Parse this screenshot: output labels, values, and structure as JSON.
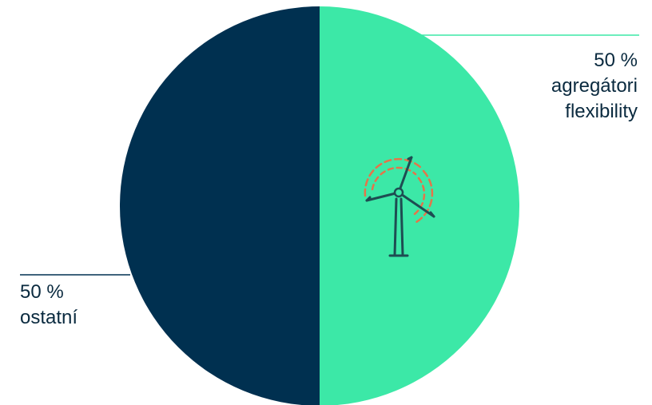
{
  "chart_data": {
    "type": "pie",
    "slices": [
      {
        "value": 50,
        "percent_label": "50 %",
        "name_lines": [
          "agregátori",
          "flexibility"
        ],
        "color": "#3ce8a7"
      },
      {
        "value": 50,
        "percent_label": "50 %",
        "name_lines": [
          "ostatní"
        ],
        "color": "#003050"
      }
    ],
    "center_icon": "wind-turbine-icon",
    "colors": {
      "turbine_stroke": "#1e4d52",
      "turbine_arc": "#e3754a",
      "leader_line_right": "#3ce8a7",
      "leader_line_left": "#003050"
    }
  }
}
